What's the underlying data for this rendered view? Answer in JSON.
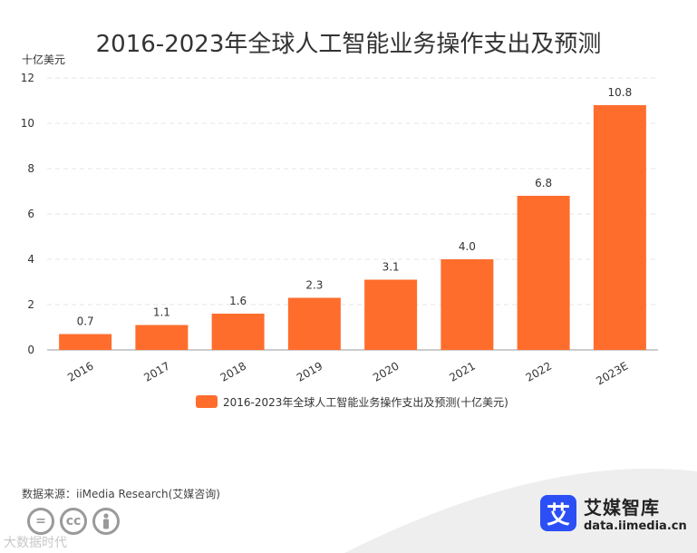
{
  "title": "2016-2023年全球人工智能业务操作支出及预测",
  "unit_label": "十亿美元",
  "source_text": "数据来源：iiMedia Research(艾媒咨询)",
  "watermark_text": "大数据时代",
  "brand": {
    "logo_char": "艾",
    "name": "艾媒智库",
    "url": "data.iimedia.cn"
  },
  "license_icons": [
    "=",
    "cc",
    "person"
  ],
  "colors": {
    "bar": "#ff6d2d",
    "grid": "#e5e5e5",
    "axis": "#999999"
  },
  "chart_data": {
    "type": "bar",
    "title": "2016-2023年全球人工智能业务操作支出及预测",
    "categories": [
      "2016",
      "2017",
      "2018",
      "2019",
      "2020",
      "2021",
      "2022",
      "2023E"
    ],
    "series": [
      {
        "name": "2016-2023年全球人工智能业务操作支出及预测(十亿美元)",
        "values": [
          0.7,
          1.1,
          1.6,
          2.3,
          3.1,
          4.0,
          6.8,
          10.8
        ],
        "labels": [
          "0.7",
          "1.1",
          "1.6",
          "2.3",
          "3.1",
          "4.0",
          "6.8",
          "10.8"
        ]
      }
    ],
    "ylim": [
      0,
      12
    ],
    "yticks": [
      "0",
      "2",
      "4",
      "6",
      "8",
      "10",
      "12"
    ],
    "grid": true,
    "legend_position": "bottom"
  }
}
